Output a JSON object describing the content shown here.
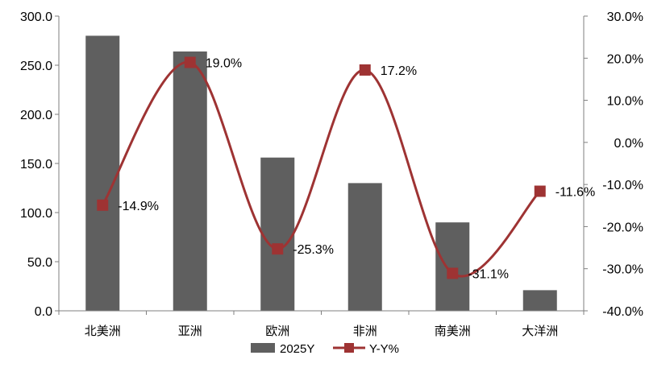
{
  "chart_data": {
    "type": "bar+line",
    "categories": [
      "北美洲",
      "亚洲",
      "欧洲",
      "非洲",
      "南美洲",
      "大洋洲"
    ],
    "series": [
      {
        "name": "2025Y",
        "type": "bar",
        "axis": "left",
        "values": [
          280.0,
          264.0,
          156.0,
          130.0,
          90.0,
          21.0
        ],
        "color": "#5f5f5f"
      },
      {
        "name": "Y-Y%",
        "type": "line",
        "axis": "right",
        "values": [
          -14.9,
          19.0,
          -25.3,
          17.2,
          -31.1,
          -11.6
        ],
        "labels": [
          "-14.9%",
          "19.0%",
          "-25.3%",
          "17.2%",
          "-31.1%",
          "-11.6%"
        ],
        "color": "#9e3333"
      }
    ],
    "left_axis": {
      "min": 0,
      "max": 300,
      "ticks": [
        "0.0",
        "50.0",
        "100.0",
        "150.0",
        "200.0",
        "250.0",
        "300.0"
      ]
    },
    "right_axis": {
      "min": -40,
      "max": 30,
      "ticks": [
        "-40.0%",
        "-30.0%",
        "-20.0%",
        "-10.0%",
        "0.0%",
        "10.0%",
        "20.0%",
        "30.0%"
      ]
    },
    "legend": {
      "position": "bottom",
      "items": [
        "2025Y",
        "Y-Y%"
      ]
    },
    "grid": false,
    "smooth_line": true
  }
}
